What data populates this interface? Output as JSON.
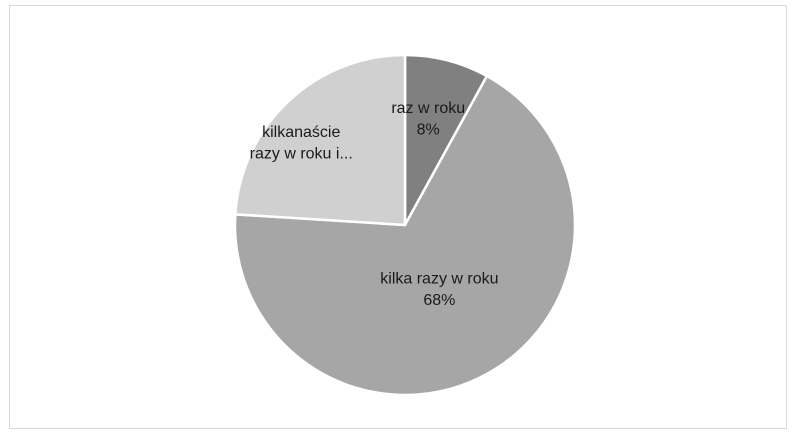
{
  "chart_data": {
    "type": "pie",
    "title": "",
    "legend": "none",
    "slices": [
      {
        "label_line1": "raz w roku",
        "label_line2": "8%",
        "value": 8,
        "color": "#808080"
      },
      {
        "label_line1": "kilka razy w roku",
        "label_line2": "68%",
        "value": 68,
        "color": "#a6a6a6"
      },
      {
        "label_line1": "kilkanaście",
        "label_line2": "razy w roku i...",
        "value": 24,
        "color": "#d0d0d0"
      }
    ]
  }
}
